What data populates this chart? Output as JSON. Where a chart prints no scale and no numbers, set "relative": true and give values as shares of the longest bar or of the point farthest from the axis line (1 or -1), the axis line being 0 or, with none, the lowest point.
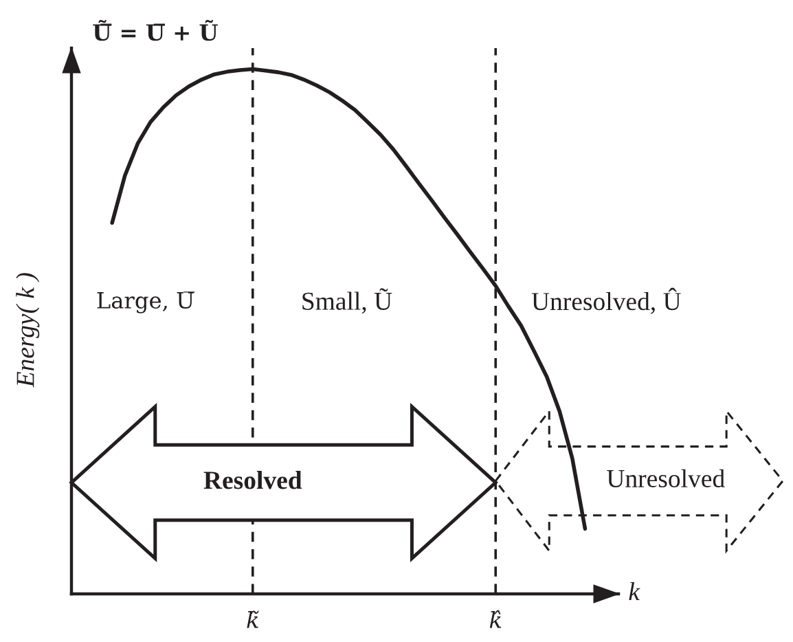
{
  "chart_data": {
    "type": "line",
    "relative": true,
    "title": "Ũ̅ = U̅ + Ũ",
    "xlabel": "k",
    "ylabel": "Energy( k )",
    "categories": [
      null,
      null,
      null,
      null,
      null,
      null,
      null,
      null,
      null,
      null,
      null,
      "k̃",
      null,
      null,
      null,
      null,
      null,
      null,
      null,
      null,
      null,
      null,
      null,
      null,
      null,
      null,
      null,
      null,
      null,
      null,
      "k̂",
      null,
      null,
      null,
      null,
      null,
      null,
      null
    ],
    "tick_labels": "x",
    "grid": "x",
    "series": [
      {
        "color": "#231f20",
        "values": [
          0.707,
          0.797,
          0.858,
          0.899,
          0.927,
          0.95,
          0.967,
          0.98,
          0.99,
          0.995,
          0.998,
          1.0,
          0.997,
          0.994,
          0.989,
          0.98,
          0.969,
          0.956,
          0.94,
          0.922,
          0.899,
          0.875,
          0.847,
          0.815,
          0.782,
          0.75,
          0.717,
          0.685,
          0.652,
          0.62,
          0.587,
          0.548,
          0.511,
          0.463,
          0.414,
          0.348,
          0.258,
          0.124
        ]
      }
    ],
    "line_style": "solid",
    "annotations": [
      "Large, U̅",
      "Small, Ũ",
      "Unresolved, Û",
      "Resolved",
      "Unresolved"
    ]
  }
}
